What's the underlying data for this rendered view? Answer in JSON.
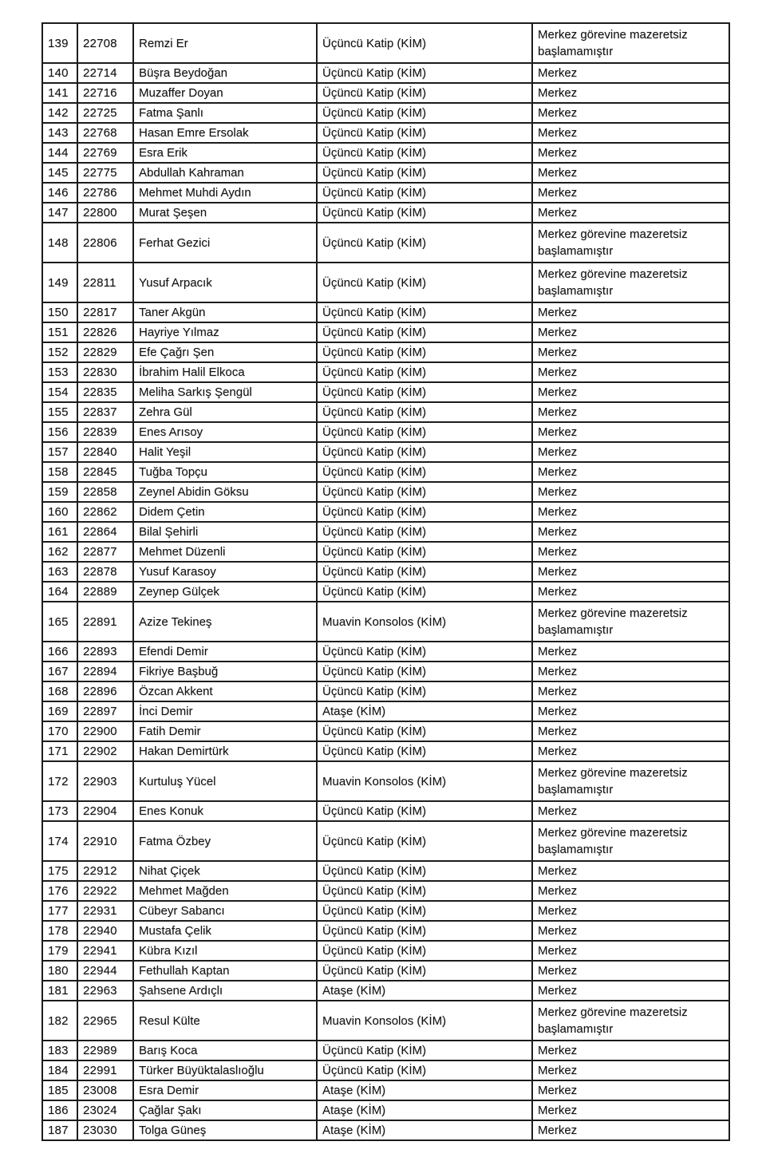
{
  "table": {
    "status_short": "Merkez",
    "status_long": "Merkez görevine mazeretsiz başlamamıştır",
    "titles": {
      "third_clerk": "Üçüncü Katip (KİM)",
      "vice_consul": "Muavin Konsolos (KİM)",
      "attache": "Ataşe (KİM)"
    },
    "rows": [
      {
        "no": "139",
        "id": "22708",
        "name": "Remzi Er",
        "title": "Üçüncü Katip (KİM)",
        "status": "Merkez görevine mazeretsiz başlamamıştır"
      },
      {
        "no": "140",
        "id": "22714",
        "name": "Büşra Beydoğan",
        "title": "Üçüncü Katip (KİM)",
        "status": "Merkez"
      },
      {
        "no": "141",
        "id": "22716",
        "name": "Muzaffer Doyan",
        "title": "Üçüncü Katip (KİM)",
        "status": "Merkez"
      },
      {
        "no": "142",
        "id": "22725",
        "name": "Fatma Şanlı",
        "title": "Üçüncü Katip (KİM)",
        "status": "Merkez"
      },
      {
        "no": "143",
        "id": "22768",
        "name": "Hasan Emre Ersolak",
        "title": "Üçüncü Katip (KİM)",
        "status": "Merkez"
      },
      {
        "no": "144",
        "id": "22769",
        "name": "Esra Erik",
        "title": "Üçüncü Katip (KİM)",
        "status": "Merkez"
      },
      {
        "no": "145",
        "id": "22775",
        "name": "Abdullah Kahraman",
        "title": "Üçüncü Katip (KİM)",
        "status": "Merkez"
      },
      {
        "no": "146",
        "id": "22786",
        "name": "Mehmet Muhdi Aydın",
        "title": "Üçüncü Katip (KİM)",
        "status": "Merkez"
      },
      {
        "no": "147",
        "id": "22800",
        "name": "Murat Şeşen",
        "title": "Üçüncü Katip (KİM)",
        "status": "Merkez"
      },
      {
        "no": "148",
        "id": "22806",
        "name": "Ferhat Gezici",
        "title": "Üçüncü Katip (KİM)",
        "status": "Merkez görevine mazeretsiz başlamamıştır"
      },
      {
        "no": "149",
        "id": "22811",
        "name": "Yusuf Arpacık",
        "title": "Üçüncü Katip (KİM)",
        "status": "Merkez görevine mazeretsiz başlamamıştır"
      },
      {
        "no": "150",
        "id": "22817",
        "name": "Taner Akgün",
        "title": "Üçüncü Katip (KİM)",
        "status": "Merkez"
      },
      {
        "no": "151",
        "id": "22826",
        "name": "Hayriye Yılmaz",
        "title": "Üçüncü Katip (KİM)",
        "status": "Merkez"
      },
      {
        "no": "152",
        "id": "22829",
        "name": "Efe Çağrı Şen",
        "title": "Üçüncü Katip (KİM)",
        "status": "Merkez"
      },
      {
        "no": "153",
        "id": "22830",
        "name": "İbrahim Halil Elkoca",
        "title": "Üçüncü Katip (KİM)",
        "status": "Merkez"
      },
      {
        "no": "154",
        "id": "22835",
        "name": "Meliha Sarkış Şengül",
        "title": "Üçüncü Katip (KİM)",
        "status": "Merkez"
      },
      {
        "no": "155",
        "id": "22837",
        "name": "Zehra Gül",
        "title": "Üçüncü Katip (KİM)",
        "status": "Merkez"
      },
      {
        "no": "156",
        "id": "22839",
        "name": "Enes Arısoy",
        "title": "Üçüncü Katip (KİM)",
        "status": "Merkez"
      },
      {
        "no": "157",
        "id": "22840",
        "name": "Halit Yeşil",
        "title": "Üçüncü Katip (KİM)",
        "status": "Merkez"
      },
      {
        "no": "158",
        "id": "22845",
        "name": "Tuğba Topçu",
        "title": "Üçüncü Katip (KİM)",
        "status": "Merkez"
      },
      {
        "no": "159",
        "id": "22858",
        "name": "Zeynel Abidin Göksu",
        "title": "Üçüncü Katip (KİM)",
        "status": "Merkez"
      },
      {
        "no": "160",
        "id": "22862",
        "name": "Didem Çetin",
        "title": "Üçüncü Katip (KİM)",
        "status": "Merkez"
      },
      {
        "no": "161",
        "id": "22864",
        "name": "Bilal Şehirli",
        "title": "Üçüncü Katip (KİM)",
        "status": "Merkez"
      },
      {
        "no": "162",
        "id": "22877",
        "name": "Mehmet Düzenli",
        "title": "Üçüncü Katip (KİM)",
        "status": "Merkez"
      },
      {
        "no": "163",
        "id": "22878",
        "name": "Yusuf Karasoy",
        "title": "Üçüncü Katip (KİM)",
        "status": "Merkez"
      },
      {
        "no": "164",
        "id": "22889",
        "name": "Zeynep Gülçek",
        "title": "Üçüncü Katip (KİM)",
        "status": "Merkez"
      },
      {
        "no": "165",
        "id": "22891",
        "name": "Azize Tekineş",
        "title": "Muavin Konsolos (KİM)",
        "status": "Merkez görevine mazeretsiz başlamamıştır"
      },
      {
        "no": "166",
        "id": "22893",
        "name": "Efendi Demir",
        "title": "Üçüncü Katip (KİM)",
        "status": "Merkez"
      },
      {
        "no": "167",
        "id": "22894",
        "name": "Fikriye Başbuğ",
        "title": "Üçüncü Katip (KİM)",
        "status": "Merkez"
      },
      {
        "no": "168",
        "id": "22896",
        "name": "Özcan Akkent",
        "title": "Üçüncü Katip (KİM)",
        "status": "Merkez"
      },
      {
        "no": "169",
        "id": "22897",
        "name": "İnci Demir",
        "title": "Ataşe (KİM)",
        "status": "Merkez"
      },
      {
        "no": "170",
        "id": "22900",
        "name": "Fatih Demir",
        "title": "Üçüncü Katip (KİM)",
        "status": "Merkez"
      },
      {
        "no": "171",
        "id": "22902",
        "name": "Hakan Demirtürk",
        "title": "Üçüncü Katip (KİM)",
        "status": "Merkez"
      },
      {
        "no": "172",
        "id": "22903",
        "name": "Kurtuluş Yücel",
        "title": "Muavin Konsolos (KİM)",
        "status": "Merkez görevine mazeretsiz başlamamıştır"
      },
      {
        "no": "173",
        "id": "22904",
        "name": "Enes Konuk",
        "title": "Üçüncü Katip (KİM)",
        "status": "Merkez"
      },
      {
        "no": "174",
        "id": "22910",
        "name": "Fatma Özbey",
        "title": "Üçüncü Katip (KİM)",
        "status": "Merkez görevine mazeretsiz başlamamıştır"
      },
      {
        "no": "175",
        "id": "22912",
        "name": "Nihat Çiçek",
        "title": "Üçüncü Katip (KİM)",
        "status": "Merkez"
      },
      {
        "no": "176",
        "id": "22922",
        "name": "Mehmet Mağden",
        "title": "Üçüncü Katip (KİM)",
        "status": "Merkez"
      },
      {
        "no": "177",
        "id": "22931",
        "name": "Cübeyr Sabancı",
        "title": "Üçüncü Katip (KİM)",
        "status": "Merkez"
      },
      {
        "no": "178",
        "id": "22940",
        "name": "Mustafa Çelik",
        "title": "Üçüncü Katip (KİM)",
        "status": "Merkez"
      },
      {
        "no": "179",
        "id": "22941",
        "name": "Kübra Kızıl",
        "title": "Üçüncü Katip (KİM)",
        "status": "Merkez"
      },
      {
        "no": "180",
        "id": "22944",
        "name": "Fethullah Kaptan",
        "title": "Üçüncü Katip (KİM)",
        "status": "Merkez"
      },
      {
        "no": "181",
        "id": "22963",
        "name": "Şahsene Ardıçlı",
        "title": "Ataşe (KİM)",
        "status": "Merkez"
      },
      {
        "no": "182",
        "id": "22965",
        "name": "Resul Külte",
        "title": "Muavin Konsolos (KİM)",
        "status": "Merkez görevine mazeretsiz başlamamıştır"
      },
      {
        "no": "183",
        "id": "22989",
        "name": "Barış Koca",
        "title": "Üçüncü Katip (KİM)",
        "status": "Merkez"
      },
      {
        "no": "184",
        "id": "22991",
        "name": "Türker Büyüktalaslıoğlu",
        "title": "Üçüncü Katip (KİM)",
        "status": "Merkez"
      },
      {
        "no": "185",
        "id": "23008",
        "name": "Esra Demir",
        "title": "Ataşe (KİM)",
        "status": "Merkez"
      },
      {
        "no": "186",
        "id": "23024",
        "name": "Çağlar Şakı",
        "title": "Ataşe (KİM)",
        "status": "Merkez"
      },
      {
        "no": "187",
        "id": "23030",
        "name": "Tolga Güneş",
        "title": "Ataşe (KİM)",
        "status": "Merkez"
      }
    ]
  }
}
